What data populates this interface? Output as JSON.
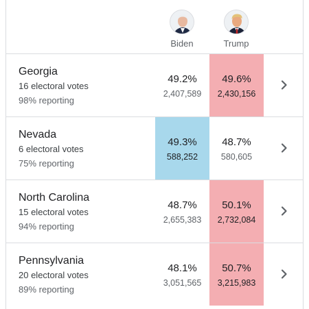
{
  "colors": {
    "biden_win": "#a8d8ec",
    "trump_win": "#f4aeb2",
    "divider": "#dadce0"
  },
  "candidates": [
    {
      "key": "biden",
      "name": "Biden"
    },
    {
      "key": "trump",
      "name": "Trump"
    }
  ],
  "rows": [
    {
      "state": "Georgia",
      "electoral": "16 electoral votes",
      "reporting": "98% reporting",
      "winner": "trump",
      "biden": {
        "pct": "49.2%",
        "votes": "2,407,589"
      },
      "trump": {
        "pct": "49.6%",
        "votes": "2,430,156"
      }
    },
    {
      "state": "Nevada",
      "electoral": "6 electoral votes",
      "reporting": "75% reporting",
      "winner": "biden",
      "biden": {
        "pct": "49.3%",
        "votes": "588,252"
      },
      "trump": {
        "pct": "48.7%",
        "votes": "580,605"
      }
    },
    {
      "state": "North Carolina",
      "electoral": "15 electoral votes",
      "reporting": "94% reporting",
      "winner": "trump",
      "biden": {
        "pct": "48.7%",
        "votes": "2,655,383"
      },
      "trump": {
        "pct": "50.1%",
        "votes": "2,732,084"
      }
    },
    {
      "state": "Pennsylvania",
      "electoral": "20 electoral votes",
      "reporting": "89% reporting",
      "winner": "trump",
      "biden": {
        "pct": "48.1%",
        "votes": "3,051,565"
      },
      "trump": {
        "pct": "50.7%",
        "votes": "3,215,983"
      }
    }
  ],
  "icons": {
    "row_action": "chevron-right-icon"
  }
}
